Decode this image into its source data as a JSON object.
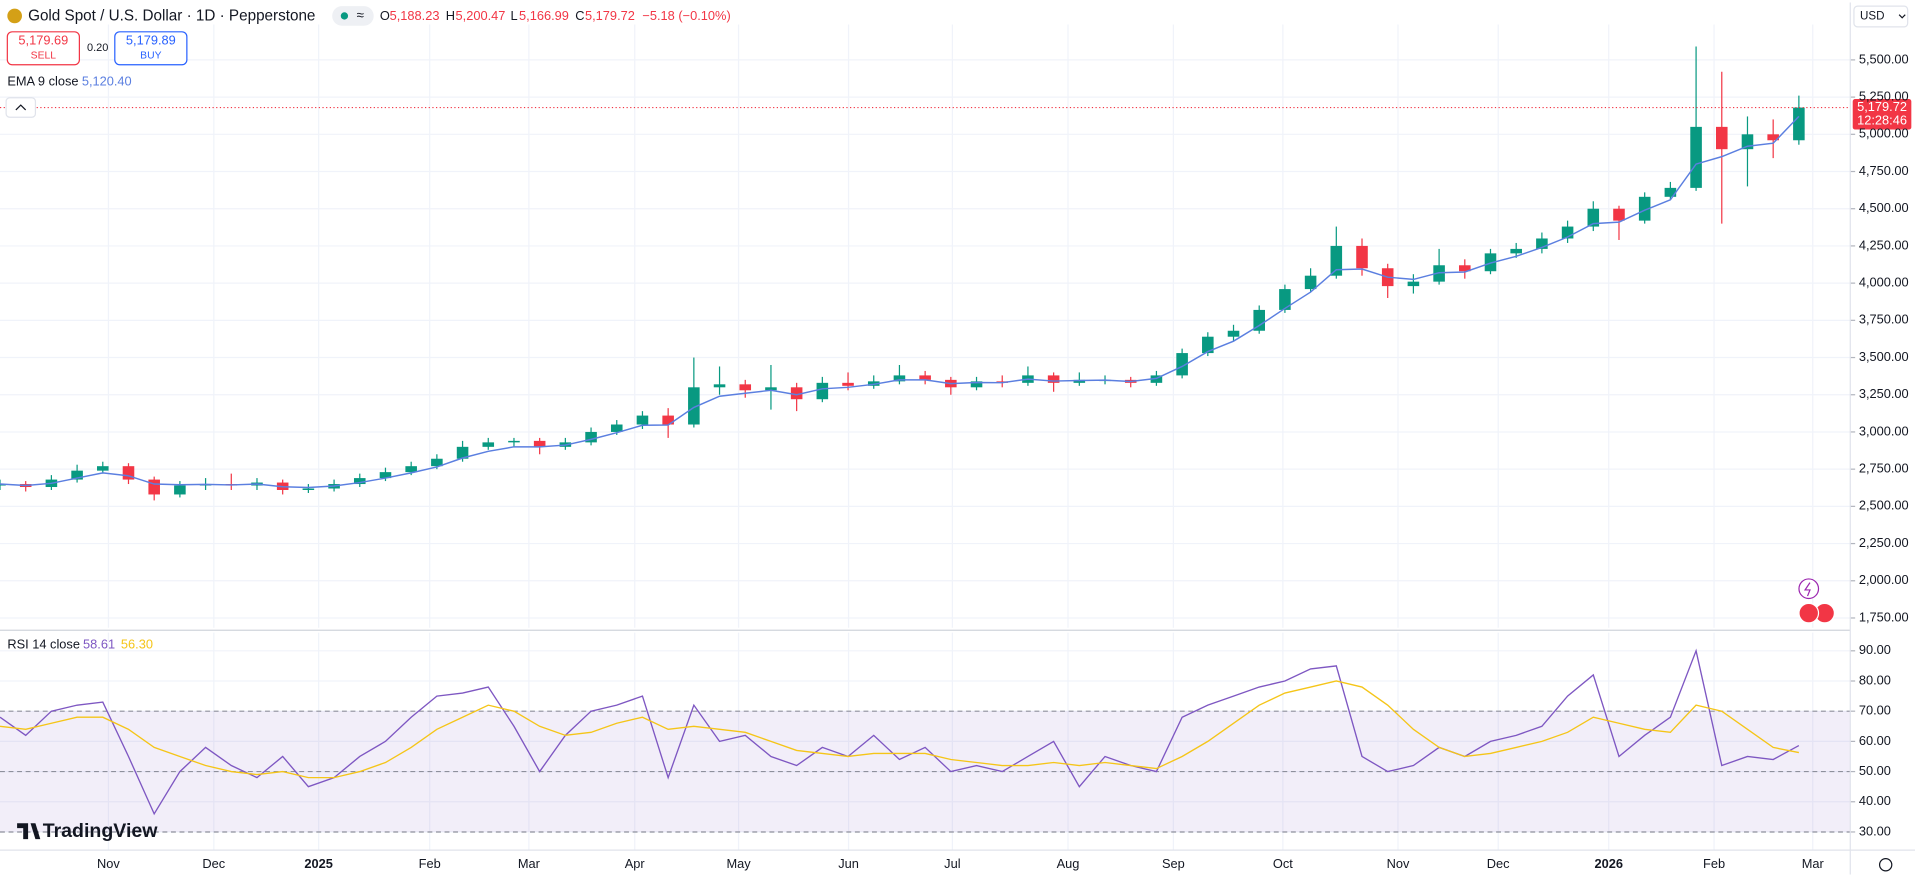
{
  "ui": {
    "symbol": "Gold Spot / U.S. Dollar · 1D · Pepperstone",
    "ohlc": [
      {
        "key": "O",
        "value": "5,188.23"
      },
      {
        "key": "H",
        "value": "5,200.47"
      },
      {
        "key": "L",
        "value": "5,166.99"
      },
      {
        "key": "C",
        "value": "5,179.72"
      }
    ],
    "change": "−5.18 (−0.10%)",
    "sell_price": "5,179.69",
    "sell": "SELL",
    "spread": "0.20",
    "buy_price": "5,179.89",
    "buy": "BUY",
    "currency": "USD",
    "brand": "TradingView"
  },
  "chart_data": [
    {
      "type": "candlestick",
      "up_color": "#089981",
      "down_color": "#f23645",
      "grid": true,
      "xlim": [
        0,
        360
      ],
      "x": [
        0,
        5,
        10,
        15,
        20,
        25,
        30,
        35,
        40,
        45,
        50,
        55,
        60,
        65,
        70,
        75,
        80,
        85,
        90,
        95,
        100,
        105,
        110,
        115,
        120,
        125,
        130,
        135,
        140,
        145,
        150,
        155,
        160,
        165,
        170,
        175,
        180,
        185,
        190,
        195,
        200,
        205,
        210,
        215,
        220,
        225,
        230,
        235,
        240,
        245,
        250,
        255,
        260,
        265,
        270,
        275,
        280,
        285,
        290,
        295,
        300,
        305,
        310,
        315,
        320,
        325,
        330,
        335,
        340,
        345,
        350
      ],
      "open": [
        2640,
        2650,
        2630,
        2680,
        2740,
        2770,
        2680,
        2580,
        2640,
        2650,
        2640,
        2660,
        2610,
        2620,
        2650,
        2690,
        2730,
        2770,
        2820,
        2900,
        2930,
        2940,
        2900,
        2930,
        3000,
        3050,
        3110,
        3050,
        3300,
        3320,
        3280,
        3300,
        3220,
        3330,
        3310,
        3340,
        3380,
        3350,
        3300,
        3340,
        3330,
        3380,
        3330,
        3350,
        3350,
        3330,
        3380,
        3530,
        3640,
        3680,
        3820,
        3960,
        4050,
        4250,
        4100,
        3980,
        4010,
        4120,
        4080,
        4200,
        4230,
        4300,
        4380,
        4500,
        4420,
        4580,
        4640,
        5050,
        4900,
        5000,
        4960
      ],
      "high": [
        2680,
        2670,
        2710,
        2780,
        2800,
        2790,
        2700,
        2670,
        2690,
        2720,
        2690,
        2680,
        2650,
        2680,
        2720,
        2760,
        2800,
        2850,
        2940,
        2960,
        2960,
        2960,
        2960,
        3030,
        3080,
        3140,
        3160,
        3500,
        3440,
        3350,
        3450,
        3330,
        3370,
        3400,
        3380,
        3450,
        3410,
        3370,
        3370,
        3380,
        3440,
        3400,
        3400,
        3380,
        3370,
        3410,
        3560,
        3670,
        3720,
        3850,
        3990,
        4100,
        4380,
        4300,
        4130,
        4060,
        4230,
        4160,
        4230,
        4270,
        4340,
        4420,
        4550,
        4520,
        4610,
        4680,
        5590,
        5420,
        5120,
        5100,
        5260
      ],
      "low": [
        2610,
        2600,
        2610,
        2660,
        2720,
        2650,
        2540,
        2560,
        2610,
        2610,
        2610,
        2580,
        2590,
        2600,
        2630,
        2670,
        2710,
        2750,
        2800,
        2880,
        2900,
        2850,
        2880,
        2910,
        2980,
        3020,
        2960,
        3030,
        3250,
        3230,
        3150,
        3140,
        3200,
        3280,
        3290,
        3320,
        3320,
        3250,
        3280,
        3300,
        3310,
        3270,
        3310,
        3320,
        3300,
        3310,
        3360,
        3510,
        3610,
        3660,
        3800,
        3940,
        4030,
        4050,
        3900,
        3930,
        3990,
        4030,
        4060,
        4170,
        4200,
        4270,
        4350,
        4290,
        4400,
        4560,
        4620,
        4400,
        4650,
        4840,
        4930
      ],
      "close": [
        2650,
        2630,
        2680,
        2740,
        2770,
        2680,
        2580,
        2640,
        2650,
        2640,
        2660,
        2610,
        2620,
        2650,
        2690,
        2730,
        2770,
        2820,
        2900,
        2930,
        2940,
        2900,
        2930,
        3000,
        3050,
        3110,
        3050,
        3300,
        3320,
        3280,
        3300,
        3220,
        3330,
        3310,
        3340,
        3380,
        3350,
        3300,
        3340,
        3330,
        3380,
        3330,
        3350,
        3350,
        3330,
        3380,
        3530,
        3640,
        3680,
        3820,
        3960,
        4050,
        4250,
        4100,
        3980,
        4010,
        4120,
        4080,
        4200,
        4230,
        4300,
        4380,
        4500,
        4420,
        4580,
        4640,
        5050,
        4900,
        5000,
        4960,
        5179.72
      ],
      "ema": {
        "name": "EMA 9 close",
        "color": "#5b7fe0",
        "value_label": "5,120.40",
        "values": [
          2650,
          2640,
          2655,
          2690,
          2725,
          2705,
          2650,
          2645,
          2648,
          2644,
          2650,
          2632,
          2627,
          2637,
          2660,
          2690,
          2725,
          2765,
          2825,
          2870,
          2900,
          2900,
          2912,
          2950,
          2995,
          3045,
          3047,
          3165,
          3240,
          3260,
          3280,
          3250,
          3290,
          3300,
          3320,
          3350,
          3350,
          3325,
          3332,
          3331,
          3355,
          3342,
          3346,
          3348,
          3339,
          3360,
          3440,
          3540,
          3610,
          3715,
          3830,
          3940,
          4090,
          4095,
          4040,
          4025,
          4070,
          4075,
          4135,
          4180,
          4240,
          4310,
          4400,
          4410,
          4490,
          4560,
          4800,
          4850,
          4920,
          4940,
          5120.4
        ]
      },
      "last_price": {
        "value": 5179.72,
        "label": "5,179.72",
        "countdown": "12:28:46",
        "color": "#f23645"
      },
      "ylim": [
        1684,
        5738
      ],
      "yticks": [
        {
          "value": 1750,
          "label": "1,750.00"
        },
        {
          "value": 2000,
          "label": "2,000.00"
        },
        {
          "value": 2250,
          "label": "2,250.00"
        },
        {
          "value": 2500,
          "label": "2,500.00"
        },
        {
          "value": 2750,
          "label": "2,750.00"
        },
        {
          "value": 3000,
          "label": "3,000.00"
        },
        {
          "value": 3250,
          "label": "3,250.00"
        },
        {
          "value": 3500,
          "label": "3,500.00"
        },
        {
          "value": 3750,
          "label": "3,750.00"
        },
        {
          "value": 4000,
          "label": "4,000.00"
        },
        {
          "value": 4250,
          "label": "4,250.00"
        },
        {
          "value": 4500,
          "label": "4,500.00"
        },
        {
          "value": 4750,
          "label": "4,750.00"
        },
        {
          "value": 5000,
          "label": "5,000.00"
        },
        {
          "value": 5250,
          "label": "5,250.00"
        },
        {
          "value": 5500,
          "label": "5,500.00"
        }
      ]
    },
    {
      "type": "line",
      "title": "RSI 14 close",
      "grid": true,
      "xlim": [
        0,
        360
      ],
      "x": [
        0,
        5,
        10,
        15,
        20,
        25,
        30,
        35,
        40,
        45,
        50,
        55,
        60,
        65,
        70,
        75,
        80,
        85,
        90,
        95,
        100,
        105,
        110,
        115,
        120,
        125,
        130,
        135,
        140,
        145,
        150,
        155,
        160,
        165,
        170,
        175,
        180,
        185,
        190,
        195,
        200,
        205,
        210,
        215,
        220,
        225,
        230,
        235,
        240,
        245,
        250,
        255,
        260,
        265,
        270,
        275,
        280,
        285,
        290,
        295,
        300,
        305,
        310,
        315,
        320,
        325,
        330,
        335,
        340,
        345,
        350
      ],
      "series": [
        {
          "color": "#7e57c2",
          "value_label": "58.61",
          "values": [
            68,
            62,
            70,
            72,
            73,
            55,
            36,
            50,
            58,
            52,
            48,
            55,
            45,
            48,
            55,
            60,
            68,
            75,
            76,
            78,
            65,
            50,
            62,
            70,
            72,
            75,
            48,
            72,
            60,
            62,
            55,
            52,
            58,
            55,
            62,
            54,
            58,
            50,
            52,
            50,
            55,
            60,
            45,
            55,
            52,
            50,
            68,
            72,
            75,
            78,
            80,
            84,
            85,
            55,
            50,
            52,
            58,
            55,
            60,
            62,
            65,
            75,
            82,
            55,
            62,
            68,
            90,
            52,
            55,
            54,
            58.61
          ]
        },
        {
          "color": "#f5c518",
          "value_label": "56.30",
          "values": [
            65,
            64,
            66,
            68,
            68,
            64,
            58,
            55,
            52,
            50,
            49,
            50,
            48,
            48,
            50,
            53,
            58,
            64,
            68,
            72,
            70,
            65,
            62,
            63,
            66,
            68,
            64,
            65,
            64,
            63,
            60,
            57,
            56,
            55,
            56,
            56,
            56,
            54,
            53,
            52,
            52,
            53,
            52,
            53,
            52,
            51,
            55,
            60,
            66,
            72,
            76,
            78,
            80,
            78,
            72,
            64,
            58,
            55,
            56,
            58,
            60,
            63,
            68,
            66,
            64,
            63,
            72,
            70,
            64,
            58,
            56.3
          ]
        }
      ],
      "bands": [
        70,
        50,
        30
      ],
      "band_fill": "#7e57c2",
      "ylim": [
        24,
        96
      ],
      "yticks": [
        {
          "value": 30,
          "label": "30.00"
        },
        {
          "value": 40,
          "label": "40.00"
        },
        {
          "value": 50,
          "label": "50.00"
        },
        {
          "value": 60,
          "label": "60.00"
        },
        {
          "value": 70,
          "label": "70.00"
        },
        {
          "value": 80,
          "label": "80.00"
        },
        {
          "value": 90,
          "label": "90.00"
        }
      ],
      "xticks": [
        {
          "value": 21.1,
          "label": "Nov"
        },
        {
          "value": 41.6,
          "label": "Dec"
        },
        {
          "value": 62,
          "label": "2025"
        },
        {
          "value": 83.6,
          "label": "Feb"
        },
        {
          "value": 102.9,
          "label": "Mar"
        },
        {
          "value": 123.5,
          "label": "Apr"
        },
        {
          "value": 143.7,
          "label": "May"
        },
        {
          "value": 165.1,
          "label": "Jun"
        },
        {
          "value": 185.3,
          "label": "Jul"
        },
        {
          "value": 207.8,
          "label": "Aug"
        },
        {
          "value": 228.3,
          "label": "Sep"
        },
        {
          "value": 249.6,
          "label": "Oct"
        },
        {
          "value": 272,
          "label": "Nov"
        },
        {
          "value": 291.5,
          "label": "Dec"
        },
        {
          "value": 313,
          "label": "2026"
        },
        {
          "value": 333.5,
          "label": "Feb"
        },
        {
          "value": 352.7,
          "label": "Mar"
        }
      ]
    }
  ]
}
